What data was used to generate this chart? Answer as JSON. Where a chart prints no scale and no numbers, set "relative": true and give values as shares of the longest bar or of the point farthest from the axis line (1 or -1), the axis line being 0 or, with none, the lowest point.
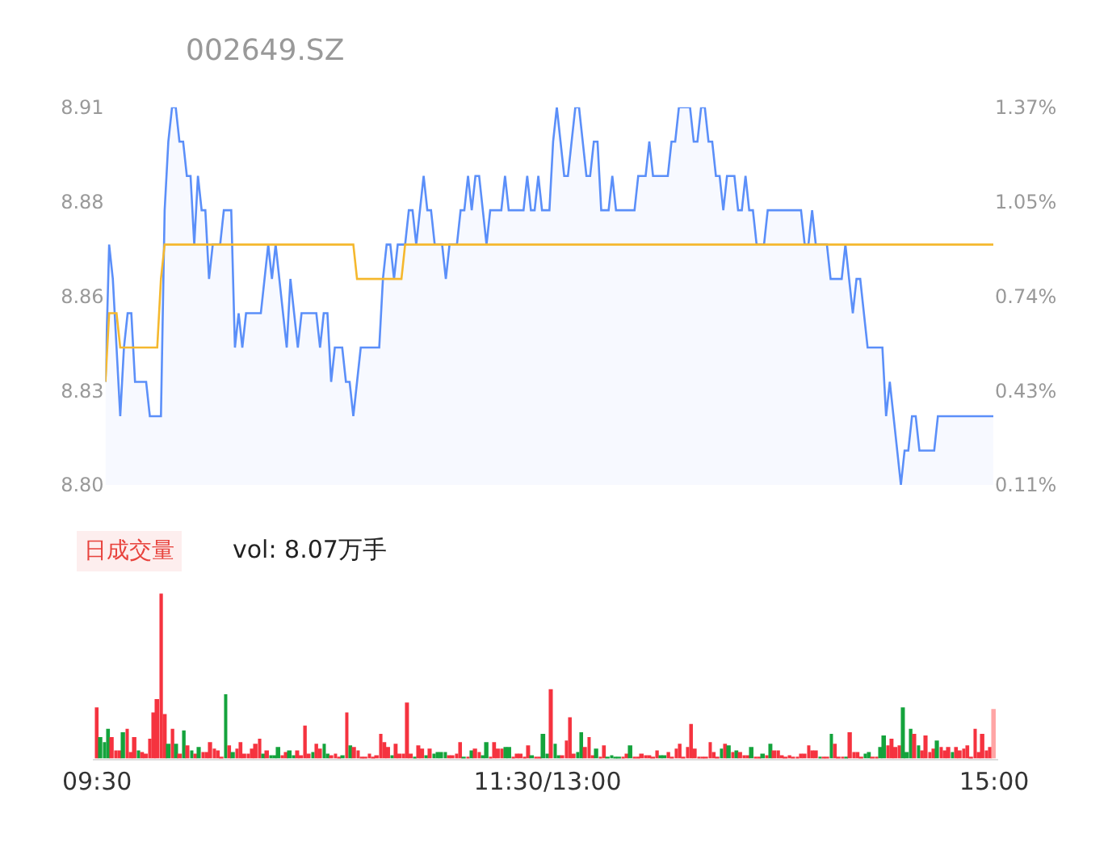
{
  "chart_data": [
    {
      "type": "line",
      "title": "002649.SZ",
      "tick_labels": "y",
      "categories": [
        null,
        null,
        null,
        null,
        null,
        null,
        null,
        null,
        null,
        null,
        null,
        null,
        null,
        null,
        null,
        null,
        null,
        null,
        null,
        null,
        null,
        null,
        null,
        null,
        null,
        null,
        null,
        null,
        null,
        null,
        null,
        null,
        null,
        null,
        null,
        null,
        null,
        null,
        null,
        null,
        null,
        null,
        null,
        null,
        null,
        null,
        null,
        null,
        null,
        null,
        null,
        null,
        null,
        null,
        null,
        null,
        null,
        null,
        null,
        null,
        null,
        null,
        null,
        null,
        null,
        null,
        null,
        null,
        null,
        null,
        null,
        null,
        null,
        null,
        null,
        null,
        null,
        null,
        null,
        null,
        null,
        null,
        null,
        null,
        null,
        null,
        null,
        null,
        null,
        null,
        null,
        null,
        null,
        null,
        null,
        null,
        null,
        null,
        null,
        null,
        null,
        null,
        null,
        null,
        null,
        null,
        null,
        null,
        null,
        null,
        null,
        null,
        null,
        null,
        null,
        null,
        null,
        null,
        null,
        null,
        null,
        null,
        null,
        null,
        null,
        null,
        null,
        null,
        null,
        null,
        null,
        null,
        null,
        null,
        null,
        null,
        null,
        null,
        null,
        null,
        null,
        null,
        null,
        null,
        null,
        null,
        null,
        null,
        null,
        null,
        null,
        null,
        null,
        null,
        null,
        null,
        null,
        null,
        null,
        null,
        null,
        null,
        null,
        null,
        null,
        null,
        null,
        null,
        null,
        null,
        null,
        null,
        null,
        null,
        null,
        null,
        null,
        null,
        null,
        null,
        null,
        null,
        null,
        null,
        null,
        null,
        null,
        null,
        null,
        null,
        null,
        null,
        null,
        null,
        null,
        null,
        null,
        null,
        null,
        null,
        null,
        null,
        null,
        null,
        null,
        null,
        null,
        null,
        null,
        null,
        null,
        null,
        null,
        null,
        null,
        null,
        null,
        null,
        null,
        null,
        null,
        null,
        null,
        null,
        null,
        null,
        null,
        null,
        null,
        null,
        null,
        null,
        null,
        null,
        null,
        null,
        null,
        null,
        null,
        null,
        null
      ],
      "ylim": [
        8.8,
        8.91
      ],
      "yticks": [
        {
          "value": 8.8,
          "label": "8.80"
        },
        {
          "value": 8.8275,
          "label": "8.83"
        },
        {
          "value": 8.855,
          "label": "8.86"
        },
        {
          "value": 8.8825,
          "label": "8.88"
        },
        {
          "value": 8.91,
          "label": "8.91"
        }
      ],
      "y2lim": [
        0.11,
        1.37
      ],
      "y2ticks": [
        {
          "value": 0.11,
          "label": "0.11%"
        },
        {
          "value": 0.425,
          "label": "0.43%"
        },
        {
          "value": 0.74,
          "label": "0.74%"
        },
        {
          "value": 1.055,
          "label": "1.05%"
        },
        {
          "value": 1.37,
          "label": "1.37%"
        }
      ],
      "series": [
        {
          "type": "area",
          "color": "#5b8ff9",
          "values": [
            8.83,
            8.87,
            8.86,
            8.84,
            8.82,
            8.84,
            8.85,
            8.85,
            8.83,
            8.83,
            8.83,
            8.83,
            8.82,
            8.82,
            8.82,
            8.82,
            8.88,
            8.9,
            8.91,
            8.91,
            8.9,
            8.9,
            8.89,
            8.89,
            8.87,
            8.89,
            8.88,
            8.88,
            8.86,
            8.87,
            8.87,
            8.87,
            8.88,
            8.88,
            8.88,
            8.84,
            8.85,
            8.84,
            8.85,
            8.85,
            8.85,
            8.85,
            8.85,
            8.86,
            8.87,
            8.86,
            8.87,
            8.86,
            8.85,
            8.84,
            8.86,
            8.85,
            8.84,
            8.85,
            8.85,
            8.85,
            8.85,
            8.85,
            8.84,
            8.85,
            8.85,
            8.83,
            8.84,
            8.84,
            8.84,
            8.83,
            8.83,
            8.82,
            8.83,
            8.84,
            8.84,
            8.84,
            8.84,
            8.84,
            8.84,
            8.86,
            8.87,
            8.87,
            8.86,
            8.87,
            8.87,
            8.87,
            8.88,
            8.88,
            8.87,
            8.88,
            8.89,
            8.88,
            8.88,
            8.87,
            8.87,
            8.87,
            8.86,
            8.87,
            8.87,
            8.87,
            8.88,
            8.88,
            8.89,
            8.88,
            8.89,
            8.89,
            8.88,
            8.87,
            8.88,
            8.88,
            8.88,
            8.88,
            8.89,
            8.88,
            8.88,
            8.88,
            8.88,
            8.88,
            8.89,
            8.88,
            8.88,
            8.89,
            8.88,
            8.88,
            8.88,
            8.9,
            8.91,
            8.9,
            8.89,
            8.89,
            8.9,
            8.91,
            8.91,
            8.9,
            8.89,
            8.89,
            8.9,
            8.9,
            8.88,
            8.88,
            8.88,
            8.89,
            8.88,
            8.88,
            8.88,
            8.88,
            8.88,
            8.88,
            8.89,
            8.89,
            8.89,
            8.9,
            8.89,
            8.89,
            8.89,
            8.89,
            8.89,
            8.9,
            8.9,
            8.91,
            8.91,
            8.91,
            8.91,
            8.9,
            8.9,
            8.91,
            8.91,
            8.9,
            8.9,
            8.89,
            8.89,
            8.88,
            8.89,
            8.89,
            8.89,
            8.88,
            8.88,
            8.89,
            8.88,
            8.88,
            8.87,
            8.87,
            8.87,
            8.88,
            8.88,
            8.88,
            8.88,
            8.88,
            8.88,
            8.88,
            8.88,
            8.88,
            8.88,
            8.87,
            8.87,
            8.88,
            8.87,
            8.87,
            8.87,
            8.87,
            8.86,
            8.86,
            8.86,
            8.86,
            8.87,
            8.86,
            8.85,
            8.86,
            8.86,
            8.85,
            8.84,
            8.84,
            8.84,
            8.84,
            8.84,
            8.82,
            8.83,
            8.82,
            8.81,
            8.8,
            8.81,
            8.81,
            8.82,
            8.82,
            8.81,
            8.81,
            8.81,
            8.81,
            8.81,
            8.82,
            8.82,
            8.82,
            8.82,
            8.82,
            8.82,
            8.82,
            8.82,
            8.82,
            8.82,
            8.82,
            8.82,
            8.82,
            8.82,
            8.82,
            8.82
          ]
        },
        {
          "type": "line",
          "color": "#f5b82e",
          "values": [
            8.83,
            8.85,
            8.85,
            8.85,
            8.84,
            8.84,
            8.84,
            8.84,
            8.84,
            8.84,
            8.84,
            8.84,
            8.84,
            8.84,
            8.84,
            8.86,
            8.87,
            8.87,
            8.87,
            8.87,
            8.87,
            8.87,
            8.87,
            8.87,
            8.87,
            8.87,
            8.87,
            8.87,
            8.87,
            8.87,
            8.87,
            8.87,
            8.87,
            8.87,
            8.87,
            8.87,
            8.87,
            8.87,
            8.87,
            8.87,
            8.87,
            8.87,
            8.87,
            8.87,
            8.87,
            8.87,
            8.87,
            8.87,
            8.87,
            8.87,
            8.87,
            8.87,
            8.87,
            8.87,
            8.87,
            8.87,
            8.87,
            8.87,
            8.87,
            8.87,
            8.87,
            8.87,
            8.87,
            8.87,
            8.87,
            8.87,
            8.87,
            8.87,
            8.86,
            8.86,
            8.86,
            8.86,
            8.86,
            8.86,
            8.86,
            8.86,
            8.86,
            8.86,
            8.86,
            8.86,
            8.86,
            8.87,
            8.87,
            8.87,
            8.87,
            8.87,
            8.87,
            8.87,
            8.87,
            8.87,
            8.87,
            8.87,
            8.87,
            8.87,
            8.87,
            8.87,
            8.87,
            8.87,
            8.87,
            8.87,
            8.87,
            8.87,
            8.87,
            8.87,
            8.87,
            8.87,
            8.87,
            8.87,
            8.87,
            8.87,
            8.87,
            8.87,
            8.87,
            8.87,
            8.87,
            8.87,
            8.87,
            8.87,
            8.87,
            8.87,
            8.87,
            8.87,
            8.87,
            8.87,
            8.87,
            8.87,
            8.87,
            8.87,
            8.87,
            8.87,
            8.87,
            8.87,
            8.87,
            8.87,
            8.87,
            8.87,
            8.87,
            8.87,
            8.87,
            8.87,
            8.87,
            8.87,
            8.87,
            8.87,
            8.87,
            8.87,
            8.87,
            8.87,
            8.87,
            8.87,
            8.87,
            8.87,
            8.87,
            8.87,
            8.87,
            8.87,
            8.87,
            8.87,
            8.87,
            8.87,
            8.87,
            8.87,
            8.87,
            8.87,
            8.87,
            8.87,
            8.87,
            8.87,
            8.87,
            8.87,
            8.87,
            8.87,
            8.87,
            8.87,
            8.87,
            8.87,
            8.87,
            8.87,
            8.87,
            8.87,
            8.87,
            8.87,
            8.87,
            8.87,
            8.87,
            8.87,
            8.87,
            8.87,
            8.87,
            8.87,
            8.87,
            8.87,
            8.87,
            8.87,
            8.87,
            8.87,
            8.87,
            8.87,
            8.87,
            8.87,
            8.87,
            8.87,
            8.87,
            8.87,
            8.87,
            8.87,
            8.87,
            8.87,
            8.87,
            8.87,
            8.87,
            8.87,
            8.87,
            8.87,
            8.87,
            8.87,
            8.87,
            8.87,
            8.87,
            8.87,
            8.87,
            8.87,
            8.87,
            8.87,
            8.87,
            8.87,
            8.87,
            8.87,
            8.87,
            8.87,
            8.87,
            8.87,
            8.87,
            8.87,
            8.87,
            8.87,
            8.87,
            8.87,
            8.87,
            8.87,
            8.87
          ]
        }
      ]
    },
    {
      "type": "bar",
      "title": "日成交量",
      "subtitle": "vol: 8.07万手",
      "relative": true,
      "categories": [
        "09:30",
        null,
        null,
        null,
        null,
        null,
        null,
        null,
        null,
        null,
        null,
        null,
        null,
        null,
        null,
        null,
        null,
        null,
        null,
        null,
        null,
        null,
        null,
        null,
        null,
        null,
        null,
        null,
        null,
        null,
        null,
        null,
        null,
        null,
        null,
        null,
        null,
        null,
        null,
        null,
        null,
        null,
        null,
        null,
        null,
        null,
        null,
        null,
        null,
        null,
        null,
        null,
        null,
        null,
        null,
        null,
        null,
        null,
        null,
        null,
        null,
        null,
        null,
        null,
        null,
        null,
        null,
        null,
        null,
        null,
        null,
        null,
        null,
        null,
        null,
        null,
        null,
        null,
        null,
        null,
        null,
        null,
        null,
        null,
        null,
        null,
        null,
        null,
        null,
        null,
        null,
        null,
        null,
        null,
        null,
        null,
        null,
        null,
        null,
        null,
        null,
        null,
        null,
        null,
        null,
        null,
        null,
        null,
        null,
        null,
        null,
        null,
        null,
        null,
        null,
        null,
        null,
        null,
        null,
        "11:30/13:00",
        null,
        null,
        null,
        null,
        null,
        null,
        null,
        null,
        null,
        null,
        null,
        null,
        null,
        null,
        null,
        null,
        null,
        null,
        null,
        null,
        null,
        null,
        null,
        null,
        null,
        null,
        null,
        null,
        null,
        null,
        null,
        null,
        null,
        null,
        null,
        null,
        null,
        null,
        null,
        null,
        null,
        null,
        null,
        null,
        null,
        null,
        null,
        null,
        null,
        null,
        null,
        null,
        null,
        null,
        null,
        null,
        null,
        null,
        null,
        null,
        null,
        null,
        null,
        null,
        null,
        null,
        null,
        null,
        null,
        null,
        null,
        null,
        null,
        null,
        null,
        null,
        null,
        null,
        null,
        null,
        null,
        null,
        null,
        null,
        null,
        null,
        null,
        null,
        null,
        null,
        null,
        null,
        null,
        null,
        null,
        null,
        null,
        null,
        null,
        null,
        null,
        null,
        null,
        null,
        null,
        null,
        null,
        null,
        null,
        null,
        null,
        null,
        null,
        null,
        null,
        null,
        null,
        "15:00"
      ],
      "values": [
        0.31,
        0.13,
        0.1,
        0.18,
        0.13,
        0.05,
        0.05,
        0.16,
        0.18,
        0.04,
        0.13,
        0.05,
        0.04,
        0.03,
        0.12,
        0.28,
        0.36,
        1,
        0.27,
        0.09,
        0.18,
        0.09,
        0.03,
        0.17,
        0.08,
        0.05,
        0.03,
        0.07,
        0.04,
        0.04,
        0.1,
        0.06,
        0.05,
        0.01,
        0.39,
        0.08,
        0.04,
        0.06,
        0.1,
        0.03,
        0.03,
        0.06,
        0.09,
        0.12,
        0.03,
        0.05,
        0.02,
        0.02,
        0.07,
        0.02,
        0.04,
        0.05,
        0.02,
        0.05,
        0.02,
        0.2,
        0.03,
        0.04,
        0.09,
        0.06,
        0.09,
        0.03,
        0.02,
        0.03,
        0.01,
        0.02,
        0.28,
        0.08,
        0.07,
        0.05,
        0.01,
        0.01,
        0.03,
        0.01,
        0.02,
        0.15,
        0.1,
        0.07,
        0.02,
        0.09,
        0.03,
        0.03,
        0.34,
        0.03,
        0.01,
        0.08,
        0.06,
        0.02,
        0.06,
        0.03,
        0.04,
        0.04,
        0.04,
        0.02,
        0.02,
        0.03,
        0.1,
        0.01,
        0.01,
        0.05,
        0.06,
        0.04,
        0.02,
        0.1,
        0.01,
        0.1,
        0.06,
        0.06,
        0.07,
        0.07,
        0.01,
        0.03,
        0.03,
        0.01,
        0.08,
        0.02,
        0.01,
        0.01,
        0.15,
        0.03,
        0.42,
        0.09,
        0.02,
        0.02,
        0.11,
        0.25,
        0.03,
        0.04,
        0.16,
        0.07,
        0.13,
        0.02,
        0.06,
        0.01,
        0.08,
        0.01,
        0.02,
        0.01,
        0.01,
        0.01,
        0.03,
        0.08,
        0.01,
        0.01,
        0.03,
        0.02,
        0.02,
        0.01,
        0.05,
        0.02,
        0.02,
        0.04,
        0.01,
        0.06,
        0.09,
        0.01,
        0.07,
        0.21,
        0.06,
        0.01,
        0.01,
        0.01,
        0.1,
        0.04,
        0.01,
        0.06,
        0.09,
        0.08,
        0.04,
        0.05,
        0.04,
        0.02,
        0.02,
        0.07,
        0.01,
        0.01,
        0.03,
        0.02,
        0.09,
        0.05,
        0.05,
        0.02,
        0.01,
        0.02,
        0.01,
        0.01,
        0.03,
        0.03,
        0.08,
        0.05,
        0.05,
        0.01,
        0.01,
        0.01,
        0.15,
        0.09,
        0.01,
        0.01,
        0.01,
        0.16,
        0.04,
        0.04,
        0.01,
        0.03,
        0.04,
        0.01,
        0.01,
        0.07,
        0.14,
        0.08,
        0.12,
        0.07,
        0.08,
        0.31,
        0.04,
        0.18,
        0.15,
        0.08,
        0.05,
        0.14,
        0.04,
        0.06,
        0.11,
        0.07,
        0.05,
        0.07,
        0.04,
        0.07,
        0.05,
        0.06,
        0.08,
        0.01,
        0.18,
        0.04,
        0.15,
        0.05,
        0.07,
        0.3
      ],
      "colors": [
        "#f5333f",
        "#14a33c",
        "#14a33c",
        "#14a33c",
        "#f5333f",
        "#f5333f",
        "#f5333f",
        "#14a33c",
        "#f5333f",
        "#f5333f",
        "#f5333f",
        "#14a33c",
        "#f5333f",
        "#f5333f",
        "#f5333f",
        "#f5333f",
        "#f5333f",
        "#f5333f",
        "#f5333f",
        "#14a33c",
        "#f5333f",
        "#14a33c",
        "#f5333f",
        "#14a33c",
        "#f5333f",
        "#14a33c",
        "#f5333f",
        "#14a33c",
        "#f5333f",
        "#f5333f",
        "#f5333f",
        "#f5333f",
        "#f5333f",
        "#f5333f",
        "#14a33c",
        "#f5333f",
        "#14a33c",
        "#f5333f",
        "#f5333f",
        "#f5333f",
        "#f5333f",
        "#f5333f",
        "#f5333f",
        "#f5333f",
        "#14a33c",
        "#f5333f",
        "#14a33c",
        "#14a33c",
        "#14a33c",
        "#f5333f",
        "#f5333f",
        "#14a33c",
        "#14a33c",
        "#f5333f",
        "#f5333f",
        "#f5333f",
        "#f5333f",
        "#14a33c",
        "#f5333f",
        "#f5333f",
        "#14a33c",
        "#14a33c",
        "#f5333f",
        "#f5333f",
        "#f5333f",
        "#14a33c",
        "#f5333f",
        "#14a33c",
        "#f5333f",
        "#f5333f",
        "#f5333f",
        "#f5333f",
        "#f5333f",
        "#f5333f",
        "#f5333f",
        "#f5333f",
        "#f5333f",
        "#f5333f",
        "#14a33c",
        "#f5333f",
        "#f5333f",
        "#f5333f",
        "#f5333f",
        "#f5333f",
        "#14a33c",
        "#f5333f",
        "#f5333f",
        "#14a33c",
        "#f5333f",
        "#14a33c",
        "#14a33c",
        "#14a33c",
        "#14a33c",
        "#f5333f",
        "#f5333f",
        "#f5333f",
        "#f5333f",
        "#14a33c",
        "#f5333f",
        "#14a33c",
        "#f5333f",
        "#f5333f",
        "#14a33c",
        "#14a33c",
        "#f5333f",
        "#f5333f",
        "#f5333f",
        "#f5333f",
        "#14a33c",
        "#14a33c",
        "#f5333f",
        "#f5333f",
        "#f5333f",
        "#f5333f",
        "#f5333f",
        "#14a33c",
        "#f5333f",
        "#f5333f",
        "#14a33c",
        "#14a33c",
        "#f5333f",
        "#14a33c",
        "#14a33c",
        "#f5333f",
        "#f5333f",
        "#f5333f",
        "#f5333f",
        "#14a33c",
        "#14a33c",
        "#f5333f",
        "#f5333f",
        "#f5333f",
        "#14a33c",
        "#f5333f",
        "#f5333f",
        "#14a33c",
        "#14a33c",
        "#14a33c",
        "#14a33c",
        "#f5333f",
        "#f5333f",
        "#14a33c",
        "#f5333f",
        "#f5333f",
        "#f5333f",
        "#f5333f",
        "#f5333f",
        "#f5333f",
        "#f5333f",
        "#14a33c",
        "#14a33c",
        "#f5333f",
        "#f5333f",
        "#f5333f",
        "#f5333f",
        "#f5333f",
        "#f5333f",
        "#f5333f",
        "#f5333f",
        "#f5333f",
        "#f5333f",
        "#f5333f",
        "#f5333f",
        "#f5333f",
        "#f5333f",
        "#14a33c",
        "#f5333f",
        "#14a33c",
        "#f5333f",
        "#14a33c",
        "#f5333f",
        "#f5333f",
        "#f5333f",
        "#14a33c",
        "#f5333f",
        "#f5333f",
        "#14a33c",
        "#f5333f",
        "#14a33c",
        "#f5333f",
        "#f5333f",
        "#f5333f",
        "#f5333f",
        "#f5333f",
        "#f5333f",
        "#f5333f",
        "#f5333f",
        "#f5333f",
        "#f5333f",
        "#f5333f",
        "#f5333f",
        "#14a33c",
        "#f5333f",
        "#f5333f",
        "#14a33c",
        "#f5333f",
        "#f5333f",
        "#f5333f",
        "#14a33c",
        "#f5333f",
        "#f5333f",
        "#f5333f",
        "#f5333f",
        "#14a33c",
        "#14a33c",
        "#f5333f",
        "#f5333f",
        "#14a33c",
        "#14a33c",
        "#f5333f",
        "#f5333f",
        "#f5333f",
        "#f5333f",
        "#14a33c",
        "#14a33c",
        "#14a33c",
        "#f5333f",
        "#14a33c",
        "#f5333f",
        "#f5333f",
        "#f5333f",
        "#f5333f",
        "#14a33c",
        "#f5333f",
        "#f5333f",
        "#f5333f",
        "#14a33c",
        "#f5333f",
        "#f5333f",
        "#f5333f",
        "#f5333f",
        "#f5333f",
        "#f5333f",
        "#f5333f",
        "#f5333f",
        "#f5333f",
        "#f5333f",
        "#ffa5a5"
      ]
    }
  ]
}
